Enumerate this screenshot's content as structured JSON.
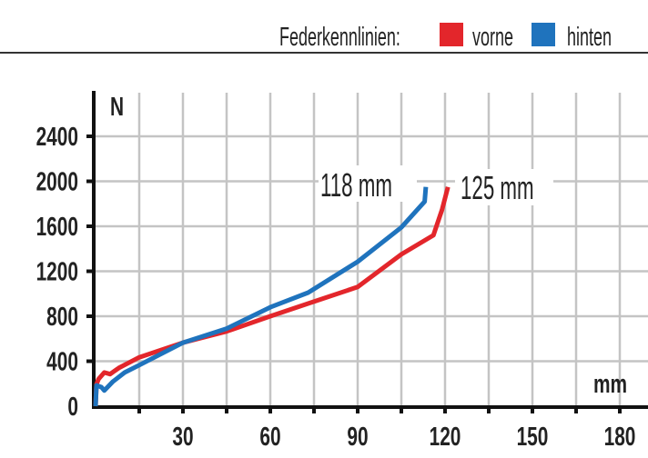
{
  "chart_data": {
    "type": "line",
    "legend": {
      "title": "Federkennlinien:",
      "placement": "top-right"
    },
    "xlabel": "mm",
    "ylabel": "N",
    "xlim": [
      0,
      182
    ],
    "ylim": [
      0,
      2500
    ],
    "x_ticks": [
      30,
      60,
      90,
      120,
      150,
      180
    ],
    "y_ticks": [
      0,
      400,
      800,
      1200,
      1600,
      2000,
      2400
    ],
    "grid": true,
    "grid_x_step": 15,
    "grid_y_step": 400,
    "series": [
      {
        "name": "vorne",
        "color": "#e3262b",
        "x": [
          0,
          0.3,
          1,
          3,
          5,
          8,
          15,
          30,
          45,
          60,
          73,
          90,
          105,
          116,
          119,
          121
        ],
        "y": [
          0,
          195,
          240,
          300,
          285,
          340,
          435,
          565,
          665,
          800,
          913,
          1060,
          1350,
          1520,
          1750,
          1950
        ]
      },
      {
        "name": "hinten",
        "color": "#1f73bd",
        "x": [
          0,
          0.3,
          2,
          3,
          6,
          10,
          15,
          30,
          45,
          60,
          73,
          90,
          105,
          113,
          113.4
        ],
        "y": [
          0,
          185,
          170,
          140,
          220,
          300,
          365,
          565,
          690,
          880,
          1010,
          1285,
          1590,
          1820,
          1950
        ]
      }
    ],
    "annotations": [
      {
        "text": "118 mm",
        "series": "hinten"
      },
      {
        "text": "125 mm",
        "series": "vorne"
      }
    ]
  }
}
